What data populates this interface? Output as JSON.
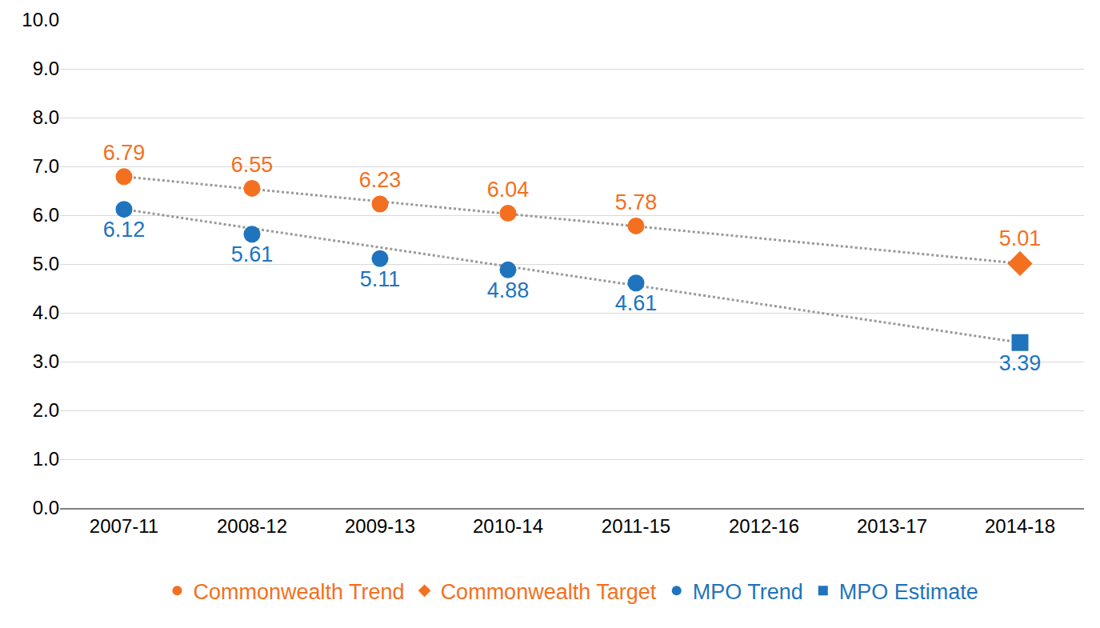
{
  "chart_data": {
    "type": "scatter",
    "categories": [
      "2007-11",
      "2008-12",
      "2009-13",
      "2010-14",
      "2011-15",
      "2012-16",
      "2013-17",
      "2014-18"
    ],
    "series": [
      {
        "name": "Commonwealth Trend",
        "color": "#F37021",
        "marker": "circle",
        "line_style": "dotted",
        "values": [
          6.79,
          6.55,
          6.23,
          6.04,
          5.78,
          null,
          null,
          null
        ]
      },
      {
        "name": "Commonwealth Target",
        "color": "#F37021",
        "marker": "diamond",
        "values": [
          null,
          null,
          null,
          null,
          null,
          null,
          null,
          5.01
        ]
      },
      {
        "name": "MPO Trend",
        "color": "#1F74BD",
        "marker": "circle",
        "line_style": "dotted",
        "values": [
          6.12,
          5.61,
          5.11,
          4.88,
          4.61,
          null,
          null,
          null
        ]
      },
      {
        "name": "MPO Estimate",
        "color": "#1F74BD",
        "marker": "square",
        "values": [
          null,
          null,
          null,
          null,
          null,
          null,
          null,
          3.39
        ]
      }
    ],
    "ylim": [
      0,
      10
    ],
    "yticks": [
      {
        "value": 0,
        "label": "0.0"
      },
      {
        "value": 1,
        "label": "1.0"
      },
      {
        "value": 2,
        "label": "2.0"
      },
      {
        "value": 3,
        "label": "3.0"
      },
      {
        "value": 4,
        "label": "4.0"
      },
      {
        "value": 5,
        "label": "5.0"
      },
      {
        "value": 6,
        "label": "6.0"
      },
      {
        "value": 7,
        "label": "7.0"
      },
      {
        "value": 8,
        "label": "8.0"
      },
      {
        "value": 9,
        "label": "9.0"
      },
      {
        "value": 10,
        "label": "10.0"
      }
    ],
    "grid": true,
    "legend": "bottom",
    "data_labels": true
  }
}
